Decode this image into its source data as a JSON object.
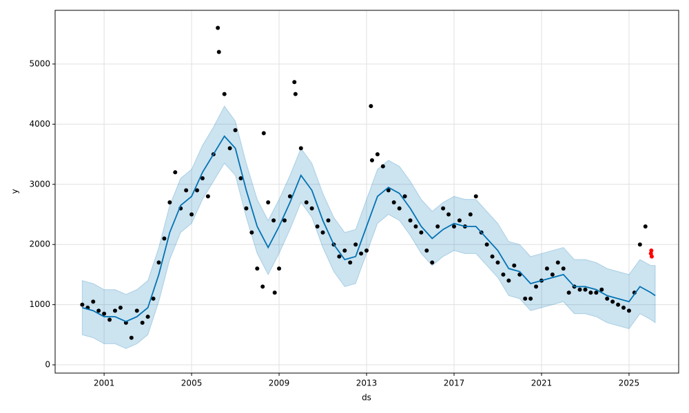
{
  "chart_data": {
    "type": "line",
    "xlabel": "ds",
    "ylabel": "y",
    "xlim": [
      1998.76,
      2027.27
    ],
    "ylim": [
      -137,
      5892
    ],
    "xticks": [
      2001,
      2005,
      2009,
      2013,
      2017,
      2021,
      2025
    ],
    "yticks": [
      0,
      1000,
      2000,
      3000,
      4000,
      5000
    ],
    "grid": true,
    "series": [
      {
        "type": "band",
        "color": "#0072B2",
        "x": [
          2000.0,
          2000.5,
          2001.0,
          2001.5,
          2002.0,
          2002.5,
          2003.0,
          2003.5,
          2004.0,
          2004.5,
          2005.0,
          2005.5,
          2006.0,
          2006.5,
          2007.0,
          2007.5,
          2008.0,
          2008.5,
          2009.0,
          2009.5,
          2010.0,
          2010.5,
          2011.0,
          2011.5,
          2012.0,
          2012.5,
          2013.0,
          2013.5,
          2014.0,
          2014.5,
          2015.0,
          2015.5,
          2016.0,
          2016.5,
          2017.0,
          2017.5,
          2018.0,
          2018.5,
          2019.0,
          2019.5,
          2020.0,
          2020.5,
          2021.0,
          2021.5,
          2022.0,
          2022.5,
          2023.0,
          2023.5,
          2024.0,
          2024.5,
          2025.0,
          2025.5,
          2026.0,
          2026.2
        ],
        "upper": [
          1400,
          1350,
          1250,
          1250,
          1170,
          1250,
          1400,
          1950,
          2650,
          3100,
          3250,
          3650,
          3950,
          4300,
          4050,
          3350,
          2750,
          2400,
          2750,
          3150,
          3600,
          3350,
          2850,
          2450,
          2200,
          2250,
          2750,
          3250,
          3400,
          3300,
          3050,
          2750,
          2550,
          2700,
          2800,
          2750,
          2750,
          2550,
          2350,
          2050,
          2000,
          1800,
          1850,
          1900,
          1950,
          1750,
          1750,
          1700,
          1600,
          1550,
          1500,
          1750,
          1650,
          1650
        ],
        "lower": [
          500,
          450,
          350,
          350,
          270,
          350,
          500,
          1050,
          1750,
          2200,
          2350,
          2750,
          3050,
          3350,
          3150,
          2450,
          1850,
          1500,
          1850,
          2250,
          2700,
          2450,
          1950,
          1550,
          1300,
          1350,
          1850,
          2350,
          2500,
          2400,
          2150,
          1850,
          1650,
          1800,
          1900,
          1850,
          1850,
          1650,
          1450,
          1150,
          1100,
          900,
          950,
          1000,
          1050,
          850,
          850,
          800,
          700,
          650,
          600,
          850,
          750,
          700
        ]
      },
      {
        "type": "scatter",
        "color": "#000000",
        "x": [
          2000.0,
          2000.25,
          2000.5,
          2000.75,
          2001.0,
          2001.25,
          2001.5,
          2001.75,
          2002.0,
          2002.25,
          2002.5,
          2002.75,
          2003.0,
          2003.25,
          2003.5,
          2003.75,
          2004.0,
          2004.25,
          2004.5,
          2004.75,
          2005.0,
          2005.25,
          2005.5,
          2005.75,
          2006.0,
          2006.25,
          2006.5,
          2006.75,
          2007.0,
          2007.25,
          2007.5,
          2007.75,
          2008.0,
          2008.25,
          2008.5,
          2008.75,
          2009.0,
          2009.25,
          2009.5,
          2009.75,
          2010.0,
          2010.25,
          2010.5,
          2010.75,
          2011.0,
          2011.25,
          2011.5,
          2011.75,
          2012.0,
          2012.25,
          2012.5,
          2012.75,
          2013.0,
          2013.25,
          2013.5,
          2013.75,
          2014.0,
          2014.25,
          2014.5,
          2014.75,
          2015.0,
          2015.25,
          2015.5,
          2015.75,
          2016.0,
          2016.25,
          2016.5,
          2016.75,
          2017.0,
          2017.25,
          2017.5,
          2017.75,
          2018.0,
          2018.25,
          2018.5,
          2018.75,
          2019.0,
          2019.25,
          2019.5,
          2019.75,
          2020.0,
          2020.25,
          2020.5,
          2020.75,
          2021.0,
          2021.25,
          2021.5,
          2021.75,
          2022.0,
          2022.25,
          2022.5,
          2022.75,
          2023.0,
          2023.25,
          2023.5,
          2023.75,
          2024.0,
          2024.25,
          2024.5,
          2024.75,
          2025.0,
          2025.25,
          2025.5,
          2025.75,
          2006.2,
          2008.3,
          2009.7,
          2013.2,
          2008.8
        ],
        "values": [
          1000,
          950,
          1050,
          900,
          850,
          750,
          900,
          950,
          700,
          450,
          900,
          700,
          800,
          1100,
          1700,
          2100,
          2700,
          3200,
          2600,
          2900,
          2500,
          2900,
          3100,
          2800,
          3500,
          5200,
          4500,
          3600,
          3900,
          3100,
          2600,
          2200,
          1600,
          1300,
          2700,
          2400,
          1600,
          2400,
          2800,
          4500,
          3600,
          2700,
          2600,
          2300,
          2200,
          2400,
          2000,
          1800,
          1900,
          1700,
          2000,
          1850,
          1900,
          3400,
          3500,
          3300,
          2900,
          2700,
          2600,
          2800,
          2400,
          2300,
          2200,
          1900,
          1700,
          2300,
          2600,
          2500,
          2300,
          2400,
          2300,
          2500,
          2800,
          2200,
          2000,
          1800,
          1700,
          1500,
          1400,
          1650,
          1500,
          1100,
          1100,
          1300,
          1400,
          1600,
          1500,
          1700,
          1600,
          1200,
          1300,
          1250,
          1250,
          1200,
          1200,
          1250,
          1100,
          1050,
          1000,
          950,
          900,
          1200,
          2000,
          2300,
          5600,
          3850,
          4700,
          4300,
          1200
        ]
      },
      {
        "type": "line",
        "color": "#0072B2",
        "x": [
          2000.0,
          2000.5,
          2001.0,
          2001.5,
          2002.0,
          2002.5,
          2003.0,
          2003.5,
          2004.0,
          2004.5,
          2005.0,
          2005.5,
          2006.0,
          2006.5,
          2007.0,
          2007.5,
          2008.0,
          2008.5,
          2009.0,
          2009.5,
          2010.0,
          2010.5,
          2011.0,
          2011.5,
          2012.0,
          2012.5,
          2013.0,
          2013.5,
          2014.0,
          2014.5,
          2015.0,
          2015.5,
          2016.0,
          2016.5,
          2017.0,
          2017.5,
          2018.0,
          2018.5,
          2019.0,
          2019.5,
          2020.0,
          2020.5,
          2021.0,
          2021.5,
          2022.0,
          2022.5,
          2023.0,
          2023.5,
          2024.0,
          2024.5,
          2025.0,
          2025.5,
          2026.0,
          2026.2
        ],
        "values": [
          950,
          900,
          800,
          800,
          720,
          800,
          950,
          1500,
          2200,
          2650,
          2800,
          3200,
          3500,
          3800,
          3600,
          2900,
          2300,
          1950,
          2300,
          2700,
          3150,
          2900,
          2400,
          2000,
          1750,
          1800,
          2300,
          2800,
          2950,
          2850,
          2600,
          2300,
          2100,
          2250,
          2350,
          2300,
          2300,
          2100,
          1900,
          1600,
          1550,
          1350,
          1400,
          1450,
          1500,
          1300,
          1300,
          1250,
          1150,
          1100,
          1050,
          1300,
          1200,
          1150
        ]
      },
      {
        "type": "scatter",
        "color": "#ff0000",
        "x": [
          2026.0,
          2026.02,
          2026.04
        ],
        "values": [
          1850,
          1900,
          1800
        ]
      }
    ]
  }
}
